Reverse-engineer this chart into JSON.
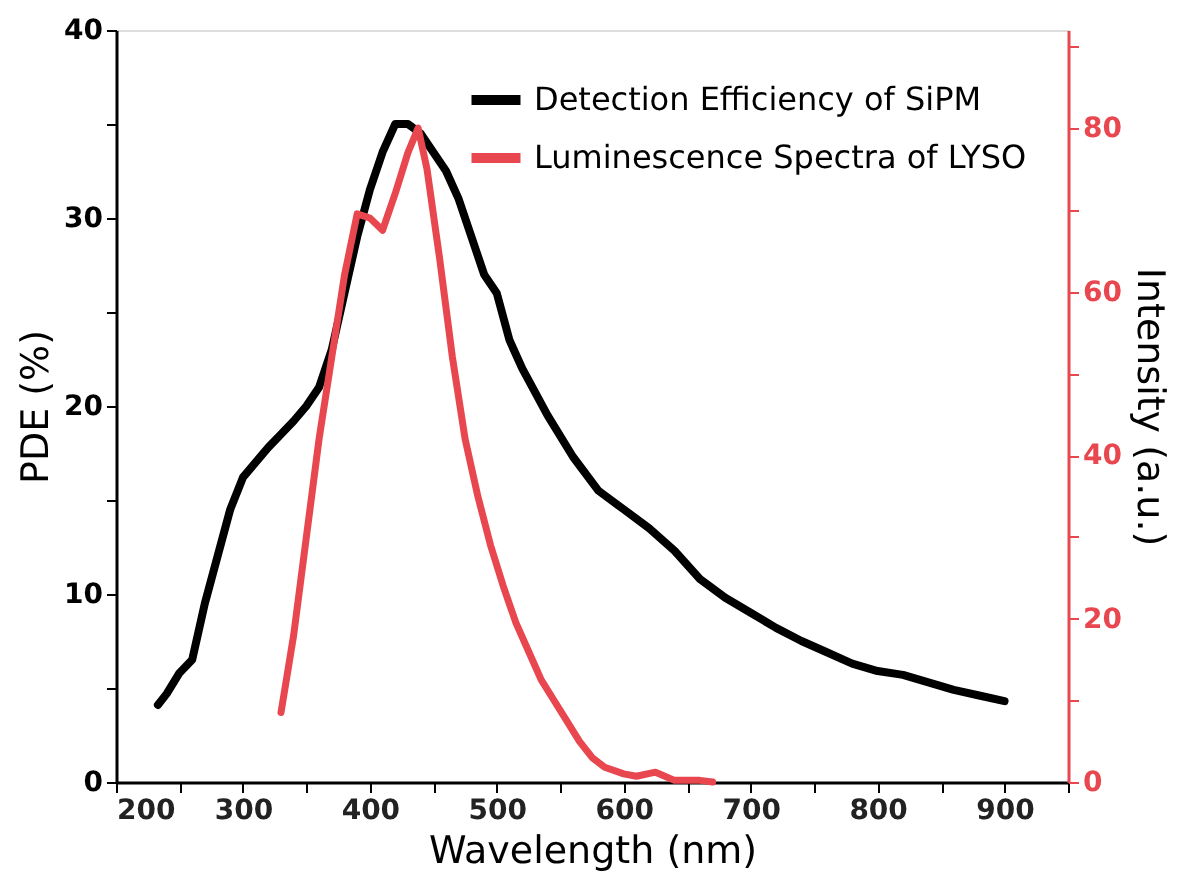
{
  "chart_data": {
    "type": "line",
    "xlabel": "Wavelength (nm)",
    "ylabel": "PDE (%)",
    "y2label": "Intensity (a.u.)",
    "xlim": [
      200,
      950
    ],
    "xticks": [
      200,
      {
        "value": 250,
        "label": null
      },
      300,
      {
        "value": 350,
        "label": null
      },
      400,
      {
        "value": 450,
        "label": null
      },
      500,
      {
        "value": 550,
        "label": null
      },
      600,
      {
        "value": 650,
        "label": null
      },
      700,
      {
        "value": 750,
        "label": null
      },
      800,
      {
        "value": 850,
        "label": null
      },
      900,
      {
        "value": 950,
        "label": null
      }
    ],
    "ylim": [
      0,
      40
    ],
    "yticks": [
      0,
      {
        "value": 5,
        "label": null
      },
      10,
      {
        "value": 15,
        "label": null
      },
      20,
      {
        "value": 25,
        "label": null
      },
      30,
      {
        "value": 35,
        "label": null
      },
      40
    ],
    "y2lim": [
      0,
      92
    ],
    "y2ticks": [
      0,
      {
        "value": 10,
        "label": null
      },
      20,
      {
        "value": 30,
        "label": null
      },
      40,
      {
        "value": 50,
        "label": null
      },
      60,
      {
        "value": 70,
        "label": null
      },
      80,
      {
        "value": 90,
        "label": null
      }
    ],
    "grid": false,
    "legend": "top right",
    "line_style": "solid",
    "marker": "none",
    "series": [
      {
        "name": "Detection Efficiency of SiPM",
        "color": "#000000",
        "x": [
          233,
          240,
          250,
          260,
          265,
          270,
          280,
          290,
          300,
          310,
          320,
          330,
          340,
          350,
          360,
          370,
          380,
          390,
          400,
          410,
          420,
          430,
          440,
          450,
          460,
          470,
          480,
          490,
          500,
          510,
          520,
          540,
          560,
          580,
          600,
          620,
          640,
          660,
          680,
          700,
          720,
          740,
          760,
          780,
          800,
          820,
          840,
          860,
          880,
          900
        ],
        "values": [
          4.1,
          4.7,
          5.8,
          6.5,
          8,
          9.5,
          12,
          14.5,
          16.2,
          17,
          17.8,
          18.5,
          19.2,
          20,
          21,
          23,
          26,
          29,
          31.5,
          33.5,
          35,
          35,
          34.5,
          33.5,
          32.5,
          31,
          29,
          27,
          26,
          23.5,
          22,
          19.5,
          17.3,
          15.5,
          14.5,
          13.5,
          12.3,
          10.8,
          9.8,
          9,
          8.2,
          7.5,
          6.9,
          6.3,
          5.9,
          5.7,
          5.3,
          4.9,
          4.6,
          4.3
        ]
      },
      {
        "name": "Luminescence Spectra of LYSO",
        "color": "#e8474f",
        "axis": "y2",
        "x": [
          330,
          340,
          350,
          360,
          370,
          380,
          390,
          400,
          410,
          420,
          430,
          438,
          445,
          455,
          465,
          475,
          485,
          495,
          505,
          515,
          525,
          535,
          545,
          555,
          565,
          575,
          585,
          600,
          610,
          625,
          640,
          660,
          670
        ],
        "values": [
          8.5,
          18,
          30,
          42,
          52,
          62,
          69.5,
          69,
          67.5,
          72,
          77,
          80,
          75,
          64,
          52,
          42,
          35,
          29,
          24,
          19.5,
          16,
          12.5,
          10,
          7.5,
          5,
          3,
          1.8,
          1,
          0.7,
          1.2,
          0.2,
          0.2,
          0
        ]
      }
    ]
  }
}
